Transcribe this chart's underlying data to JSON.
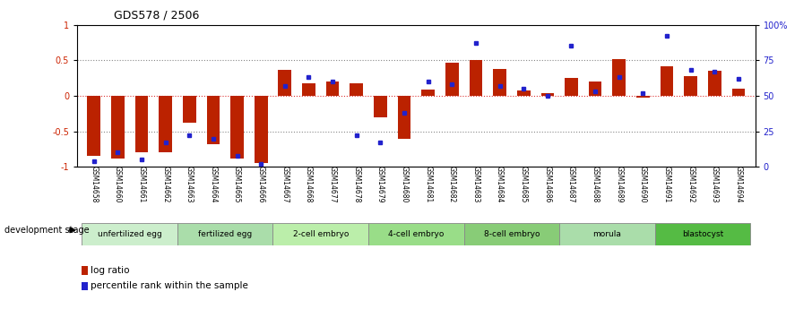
{
  "title": "GDS578 / 2506",
  "samples": [
    "GSM14658",
    "GSM14660",
    "GSM14661",
    "GSM14662",
    "GSM14663",
    "GSM14664",
    "GSM14665",
    "GSM14666",
    "GSM14667",
    "GSM14668",
    "GSM14677",
    "GSM14678",
    "GSM14679",
    "GSM14680",
    "GSM14681",
    "GSM14682",
    "GSM14683",
    "GSM14684",
    "GSM14685",
    "GSM14686",
    "GSM14687",
    "GSM14688",
    "GSM14689",
    "GSM14690",
    "GSM14691",
    "GSM14692",
    "GSM14693",
    "GSM14694"
  ],
  "log_ratio": [
    -0.84,
    -0.88,
    -0.8,
    -0.8,
    -0.38,
    -0.68,
    -0.88,
    -0.95,
    0.36,
    0.17,
    0.2,
    0.18,
    -0.3,
    -0.6,
    0.09,
    0.46,
    0.5,
    0.38,
    0.07,
    0.04,
    0.25,
    0.2,
    0.52,
    -0.02,
    0.42,
    0.28,
    0.35,
    0.1
  ],
  "percentile_rank": [
    4,
    10,
    5,
    17,
    22,
    20,
    8,
    2,
    57,
    63,
    60,
    22,
    17,
    38,
    60,
    58,
    87,
    57,
    55,
    50,
    85,
    53,
    63,
    52,
    92,
    68,
    67,
    62
  ],
  "stage_groups": [
    {
      "label": "unfertilized egg",
      "start": 0,
      "end": 4,
      "color": "#cceecc"
    },
    {
      "label": "fertilized egg",
      "start": 4,
      "end": 8,
      "color": "#aaddaa"
    },
    {
      "label": "2-cell embryo",
      "start": 8,
      "end": 12,
      "color": "#bbeeaa"
    },
    {
      "label": "4-cell embryo",
      "start": 12,
      "end": 16,
      "color": "#99dd88"
    },
    {
      "label": "8-cell embryo",
      "start": 16,
      "end": 20,
      "color": "#88cc77"
    },
    {
      "label": "morula",
      "start": 20,
      "end": 24,
      "color": "#aaddaa"
    },
    {
      "label": "blastocyst",
      "start": 24,
      "end": 28,
      "color": "#55bb44"
    }
  ],
  "bar_color": "#bb2200",
  "dot_color": "#2222cc",
  "dotted_line_color": "#888888",
  "zero_line_color": "#dd3333",
  "background_color": "#ffffff",
  "ylim_left": [
    -1,
    1
  ],
  "ylim_right": [
    0,
    100
  ],
  "yticks_left": [
    -1,
    -0.5,
    0,
    0.5,
    1
  ],
  "ytick_labels_left": [
    "-1",
    "-0.5",
    "0",
    "0.5",
    "1"
  ],
  "yticks_right": [
    0,
    25,
    50,
    75,
    100
  ],
  "ytick_labels_right": [
    "0",
    "25",
    "50",
    "75",
    "100%"
  ]
}
